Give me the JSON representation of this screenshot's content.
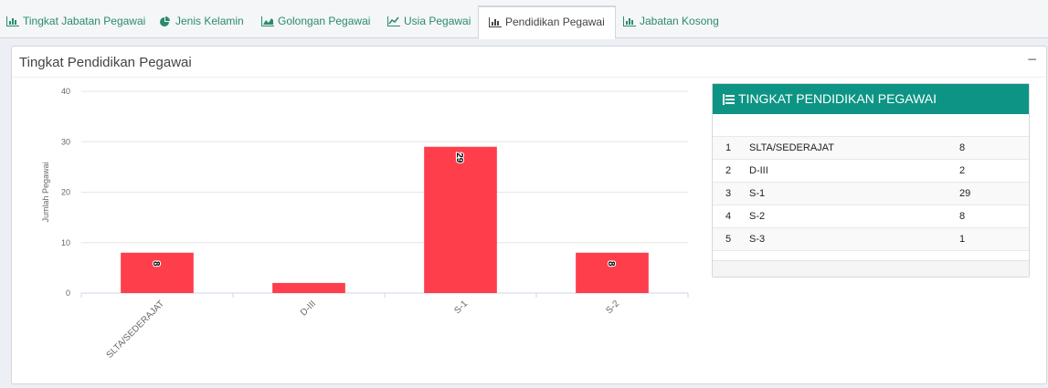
{
  "tabs": [
    {
      "label": "Tingkat Jabatan Pegawai",
      "icon": "bar-chart-icon",
      "active": false
    },
    {
      "label": "Jenis Kelamin",
      "icon": "pie-chart-icon",
      "active": false
    },
    {
      "label": "Golongan Pegawai",
      "icon": "area-chart-icon",
      "active": false
    },
    {
      "label": "Usia Pegawai",
      "icon": "line-chart-icon",
      "active": false
    },
    {
      "label": "Pendidikan Pegawai",
      "icon": "bar-chart-icon",
      "active": true
    },
    {
      "label": "Jabatan Kosong",
      "icon": "bar-chart-icon",
      "active": false
    }
  ],
  "panel": {
    "title": "Tingkat Pendidikan Pegawai",
    "minimize_label": "−"
  },
  "chart_data": {
    "type": "bar",
    "categories": [
      "SLTA/SEDERAJAT",
      "D-III",
      "S-1",
      "S-2"
    ],
    "values": [
      8,
      2,
      29,
      8
    ],
    "data_labels": [
      "8",
      "",
      "29",
      "8"
    ],
    "ylabel": "Jumlah Pegawai",
    "ylim": [
      0,
      40
    ],
    "yticks": [
      "0",
      "10",
      "20",
      "30",
      "40"
    ],
    "bar_color": "#ff3e4b",
    "grid": true
  },
  "table": {
    "title": "TINGKAT PENDIDIKAN PEGAWAI",
    "header_color": "#0d9485",
    "rows": [
      {
        "no": "1",
        "name": "SLTA/SEDERAJAT",
        "count": "8"
      },
      {
        "no": "2",
        "name": "D-III",
        "count": "2"
      },
      {
        "no": "3",
        "name": "S-1",
        "count": "29"
      },
      {
        "no": "4",
        "name": "S-2",
        "count": "8"
      },
      {
        "no": "5",
        "name": "S-3",
        "count": "1"
      }
    ]
  }
}
